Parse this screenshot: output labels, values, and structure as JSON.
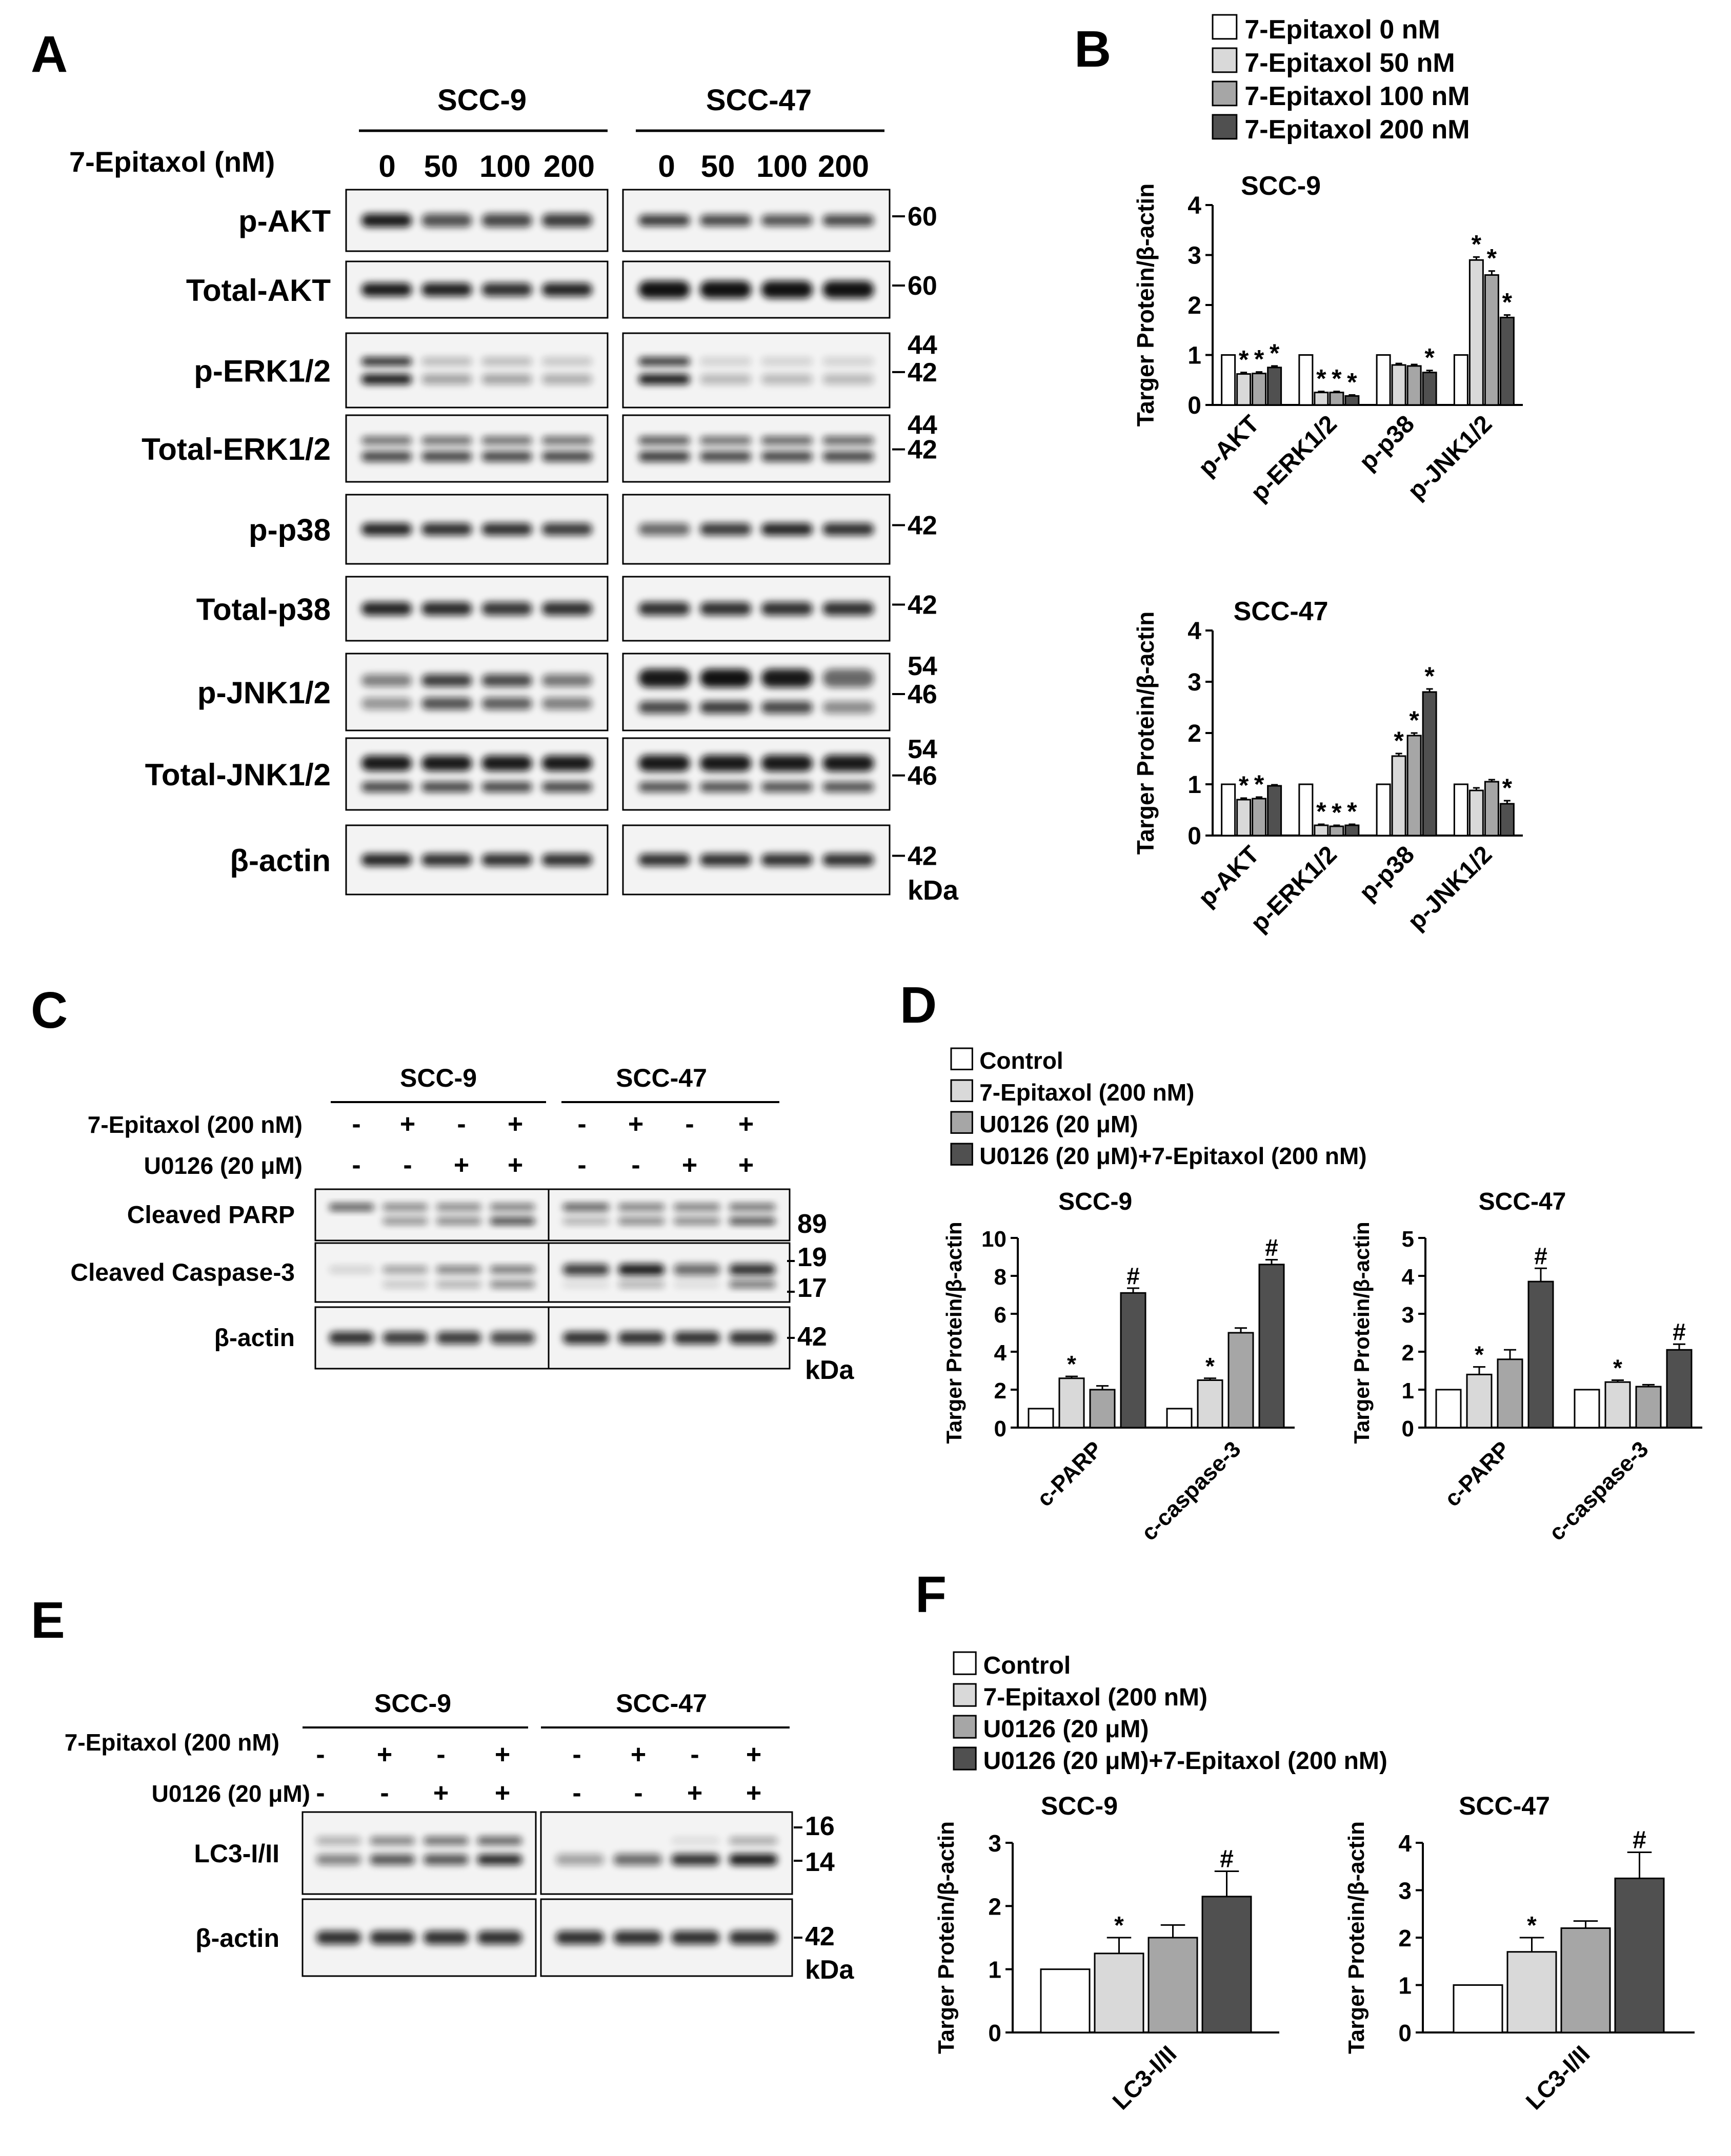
{
  "colors": {
    "c0": "#ffffff",
    "c1": "#d9d9d9",
    "c2": "#a6a6a6",
    "c3": "#505050",
    "ink": "#000000"
  },
  "panel_labels": {
    "A": "A",
    "B": "B",
    "C": "C",
    "D": "D",
    "E": "E",
    "F": "F"
  },
  "common": {
    "kda": "kDa",
    "actin": "β-actin",
    "scc9": "SCC-9",
    "scc47": "SCC-47",
    "y_label": "Targer Protein/β-actin",
    "star": "*",
    "hash": "#",
    "plus": "+",
    "minus": "-"
  },
  "panel_A": {
    "treatment_label": "7-Epitaxol (nM)",
    "doses": [
      "0",
      "50",
      "100",
      "200"
    ],
    "rows": [
      {
        "label": "p-AKT",
        "mw": [
          "60"
        ]
      },
      {
        "label": "Total-AKT",
        "mw": [
          "60"
        ]
      },
      {
        "label": "p-ERK1/2",
        "mw": [
          "44",
          "42"
        ]
      },
      {
        "label": "Total-ERK1/2",
        "mw": [
          "44",
          "42"
        ]
      },
      {
        "label": "p-p38",
        "mw": [
          "42"
        ]
      },
      {
        "label": "Total-p38",
        "mw": [
          "42"
        ]
      },
      {
        "label": "p-JNK1/2",
        "mw": [
          "54",
          "46"
        ]
      },
      {
        "label": "Total-JNK1/2",
        "mw": [
          "54",
          "46"
        ]
      },
      {
        "label": "β-actin",
        "mw": [
          "42"
        ]
      }
    ]
  },
  "panel_C": {
    "treat1": "7-Epitaxol (200 nM)",
    "treat2": "U0126 (20 μM)",
    "signs1": [
      "-",
      "+",
      "-",
      "+"
    ],
    "signs2": [
      "-",
      "-",
      "+",
      "+"
    ],
    "rows": [
      {
        "label": "Cleaved  PARP",
        "mw": [
          "89"
        ]
      },
      {
        "label": "Cleaved Caspase-3",
        "mw": [
          "19",
          "17"
        ]
      },
      {
        "label": "β-actin",
        "mw": [
          "42"
        ]
      }
    ]
  },
  "panel_E": {
    "treat1": "7-Epitaxol (200 nM)",
    "treat2": "U0126 (20 μM)",
    "signs1": [
      "-",
      "+",
      "-",
      "+"
    ],
    "signs2": [
      "-",
      "-",
      "+",
      "+"
    ],
    "rows": [
      {
        "label": "LC3-I/II",
        "mw": [
          "16",
          "14"
        ]
      },
      {
        "label": "β-actin",
        "mw": [
          "42"
        ]
      }
    ]
  },
  "legends": {
    "B": [
      "7-Epitaxol 0 nM",
      "7-Epitaxol 50 nM",
      "7-Epitaxol 100 nM",
      "7-Epitaxol 200 nM"
    ],
    "D": [
      "Control",
      "7-Epitaxol (200 nM)",
      "U0126 (20 μM)",
      "U0126 (20 μM)+7-Epitaxol (200 nM)"
    ],
    "F": [
      "Control",
      "7-Epitaxol (200 nM)",
      "U0126 (20 μM)",
      "U0126 (20 μM)+7-Epitaxol (200 nM)"
    ]
  },
  "chart_data": [
    {
      "id": "B-SCC-9",
      "type": "bar",
      "title": "SCC-9",
      "ylabel": "Targer Protein/β-actin",
      "categories": [
        "p-AKT",
        "p-ERK1/2",
        "p-p38",
        "p-JNK1/2"
      ],
      "ylim": [
        0,
        4
      ],
      "yticks": [
        0,
        1,
        2,
        3,
        4
      ],
      "series": [
        {
          "name": "7-Epitaxol 0 nM",
          "values": [
            1.0,
            1.0,
            1.0,
            1.0
          ],
          "errors": [
            0,
            0,
            0,
            0
          ],
          "marks": [
            "",
            "",
            "",
            ""
          ]
        },
        {
          "name": "7-Epitaxol 50 nM",
          "values": [
            0.62,
            0.25,
            0.8,
            2.9
          ],
          "errors": [
            0.03,
            0.02,
            0.03,
            0.06
          ],
          "marks": [
            "*",
            "*",
            "",
            "*"
          ]
        },
        {
          "name": "7-Epitaxol 100 nM",
          "values": [
            0.63,
            0.25,
            0.78,
            2.6
          ],
          "errors": [
            0.03,
            0.02,
            0.03,
            0.08
          ],
          "marks": [
            "*",
            "*",
            "",
            "*"
          ]
        },
        {
          "name": "7-Epitaxol 200 nM",
          "values": [
            0.75,
            0.18,
            0.65,
            1.75
          ],
          "errors": [
            0.03,
            0.02,
            0.04,
            0.05
          ],
          "marks": [
            "*",
            "*",
            "*",
            "*"
          ]
        }
      ]
    },
    {
      "id": "B-SCC-47",
      "type": "bar",
      "title": "SCC-47",
      "ylabel": "Targer Protein/β-actin",
      "categories": [
        "p-AKT",
        "p-ERK1/2",
        "p-p38",
        "p-JNK1/2"
      ],
      "ylim": [
        0,
        4
      ],
      "yticks": [
        0,
        1,
        2,
        3,
        4
      ],
      "series": [
        {
          "name": "7-Epitaxol 0 nM",
          "values": [
            1.0,
            1.0,
            1.0,
            1.0
          ],
          "errors": [
            0,
            0,
            0,
            0
          ],
          "marks": [
            "",
            "",
            "",
            ""
          ]
        },
        {
          "name": "7-Epitaxol 50 nM",
          "values": [
            0.7,
            0.2,
            1.55,
            0.88
          ],
          "errors": [
            0.03,
            0.02,
            0.05,
            0.05
          ],
          "marks": [
            "*",
            "*",
            "*",
            ""
          ]
        },
        {
          "name": "7-Epitaxol 100 nM",
          "values": [
            0.72,
            0.18,
            1.95,
            1.05
          ],
          "errors": [
            0.03,
            0.02,
            0.05,
            0.04
          ],
          "marks": [
            "*",
            "*",
            "*",
            ""
          ]
        },
        {
          "name": "7-Epitaxol 200 nM",
          "values": [
            0.97,
            0.2,
            2.8,
            0.62
          ],
          "errors": [
            0.02,
            0.02,
            0.06,
            0.06
          ],
          "marks": [
            "",
            "*",
            "*",
            "*"
          ]
        }
      ]
    },
    {
      "id": "D-SCC-9",
      "type": "bar",
      "title": "SCC-9",
      "ylabel": "Targer Protein/β-actin",
      "categories": [
        "c-PARP",
        "c-caspase-3"
      ],
      "ylim": [
        0,
        10
      ],
      "yticks": [
        0,
        2,
        4,
        6,
        8,
        10
      ],
      "series": [
        {
          "name": "Control",
          "values": [
            1.0,
            1.0
          ],
          "errors": [
            0,
            0
          ],
          "marks": [
            "",
            ""
          ]
        },
        {
          "name": "7-Epitaxol (200 nM)",
          "values": [
            2.6,
            2.5
          ],
          "errors": [
            0.1,
            0.1
          ],
          "marks": [
            "*",
            "*"
          ]
        },
        {
          "name": "U0126 (20 μM)",
          "values": [
            2.0,
            5.0
          ],
          "errors": [
            0.2,
            0.25
          ],
          "marks": [
            "",
            ""
          ]
        },
        {
          "name": "U0126 (20 μM)+7-Epitaxol (200 nM)",
          "values": [
            7.1,
            8.6
          ],
          "errors": [
            0.25,
            0.25
          ],
          "marks": [
            "#",
            "#"
          ]
        }
      ]
    },
    {
      "id": "D-SCC-47",
      "type": "bar",
      "title": "SCC-47",
      "ylabel": "Targer Protein/β-actin",
      "categories": [
        "c-PARP",
        "c-caspase-3"
      ],
      "ylim": [
        0,
        5
      ],
      "yticks": [
        0,
        1,
        2,
        3,
        4,
        5
      ],
      "series": [
        {
          "name": "Control",
          "values": [
            1.0,
            1.0
          ],
          "errors": [
            0,
            0
          ],
          "marks": [
            "",
            ""
          ]
        },
        {
          "name": "7-Epitaxol (200 nM)",
          "values": [
            1.4,
            1.2
          ],
          "errors": [
            0.2,
            0.05
          ],
          "marks": [
            "*",
            "*"
          ]
        },
        {
          "name": "U0126 (20 μM)",
          "values": [
            1.8,
            1.08
          ],
          "errors": [
            0.25,
            0.05
          ],
          "marks": [
            "",
            ""
          ]
        },
        {
          "name": "U0126 (20 μM)+7-Epitaxol (200 nM)",
          "values": [
            3.85,
            2.05
          ],
          "errors": [
            0.35,
            0.15
          ],
          "marks": [
            "#",
            "#"
          ]
        }
      ]
    },
    {
      "id": "F-SCC-9",
      "type": "bar",
      "title": "SCC-9",
      "ylabel": "Targer Protein/β-actin",
      "categories": [
        "LC3-I/II"
      ],
      "ylim": [
        0,
        3
      ],
      "yticks": [
        0,
        1,
        2,
        3
      ],
      "series": [
        {
          "name": "Control",
          "values": [
            1.0
          ],
          "errors": [
            0
          ],
          "marks": [
            ""
          ]
        },
        {
          "name": "7-Epitaxol (200 nM)",
          "values": [
            1.25
          ],
          "errors": [
            0.25
          ],
          "marks": [
            "*"
          ]
        },
        {
          "name": "U0126 (20 μM)",
          "values": [
            1.5
          ],
          "errors": [
            0.2
          ],
          "marks": [
            ""
          ]
        },
        {
          "name": "U0126 (20 μM)+7-Epitaxol (200 nM)",
          "values": [
            2.15
          ],
          "errors": [
            0.4
          ],
          "marks": [
            "#"
          ]
        }
      ]
    },
    {
      "id": "F-SCC-47",
      "type": "bar",
      "title": "SCC-47",
      "ylabel": "Targer Protein/β-actin",
      "categories": [
        "LC3-I/II"
      ],
      "ylim": [
        0,
        4
      ],
      "yticks": [
        0,
        1,
        2,
        3,
        4
      ],
      "series": [
        {
          "name": "Control",
          "values": [
            1.0
          ],
          "errors": [
            0
          ],
          "marks": [
            ""
          ]
        },
        {
          "name": "7-Epitaxol (200 nM)",
          "values": [
            1.7
          ],
          "errors": [
            0.3
          ],
          "marks": [
            "*"
          ]
        },
        {
          "name": "U0126 (20 μM)",
          "values": [
            2.2
          ],
          "errors": [
            0.15
          ],
          "marks": [
            ""
          ]
        },
        {
          "name": "U0126 (20 μM)+7-Epitaxol (200 nM)",
          "values": [
            3.25
          ],
          "errors": [
            0.55
          ],
          "marks": [
            "#"
          ]
        }
      ]
    }
  ]
}
